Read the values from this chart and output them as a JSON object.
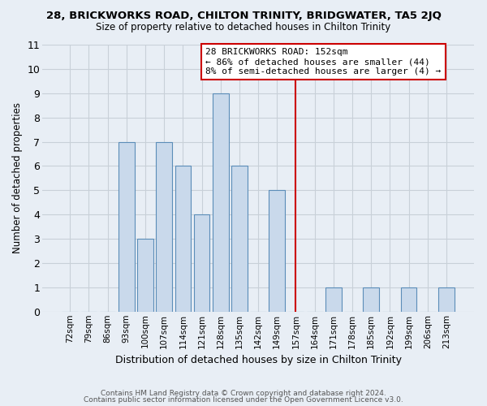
{
  "title": "28, BRICKWORKS ROAD, CHILTON TRINITY, BRIDGWATER, TA5 2JQ",
  "subtitle": "Size of property relative to detached houses in Chilton Trinity",
  "xlabel": "Distribution of detached houses by size in Chilton Trinity",
  "ylabel": "Number of detached properties",
  "bar_labels": [
    "72sqm",
    "79sqm",
    "86sqm",
    "93sqm",
    "100sqm",
    "107sqm",
    "114sqm",
    "121sqm",
    "128sqm",
    "135sqm",
    "142sqm",
    "149sqm",
    "157sqm",
    "164sqm",
    "171sqm",
    "178sqm",
    "185sqm",
    "192sqm",
    "199sqm",
    "206sqm",
    "213sqm"
  ],
  "bar_values": [
    0,
    0,
    0,
    7,
    3,
    7,
    6,
    4,
    9,
    6,
    0,
    5,
    0,
    0,
    1,
    0,
    1,
    0,
    1,
    0,
    1
  ],
  "ylim": [
    0,
    11
  ],
  "yticks": [
    0,
    1,
    2,
    3,
    4,
    5,
    6,
    7,
    8,
    9,
    10,
    11
  ],
  "bar_color": "#c9d9eb",
  "bar_edge_color": "#5b8db8",
  "grid_color": "#c8d0d8",
  "bg_color": "#e8eef5",
  "vline_x_index": 12.0,
  "annotation_title": "28 BRICKWORKS ROAD: 152sqm",
  "annotation_line1": "← 86% of detached houses are smaller (44)",
  "annotation_line2": "8% of semi-detached houses are larger (4) →",
  "annotation_box_color": "#ffffff",
  "annotation_border_color": "#cc0000",
  "vline_color": "#cc0000",
  "footer1": "Contains HM Land Registry data © Crown copyright and database right 2024.",
  "footer2": "Contains public sector information licensed under the Open Government Licence v3.0."
}
